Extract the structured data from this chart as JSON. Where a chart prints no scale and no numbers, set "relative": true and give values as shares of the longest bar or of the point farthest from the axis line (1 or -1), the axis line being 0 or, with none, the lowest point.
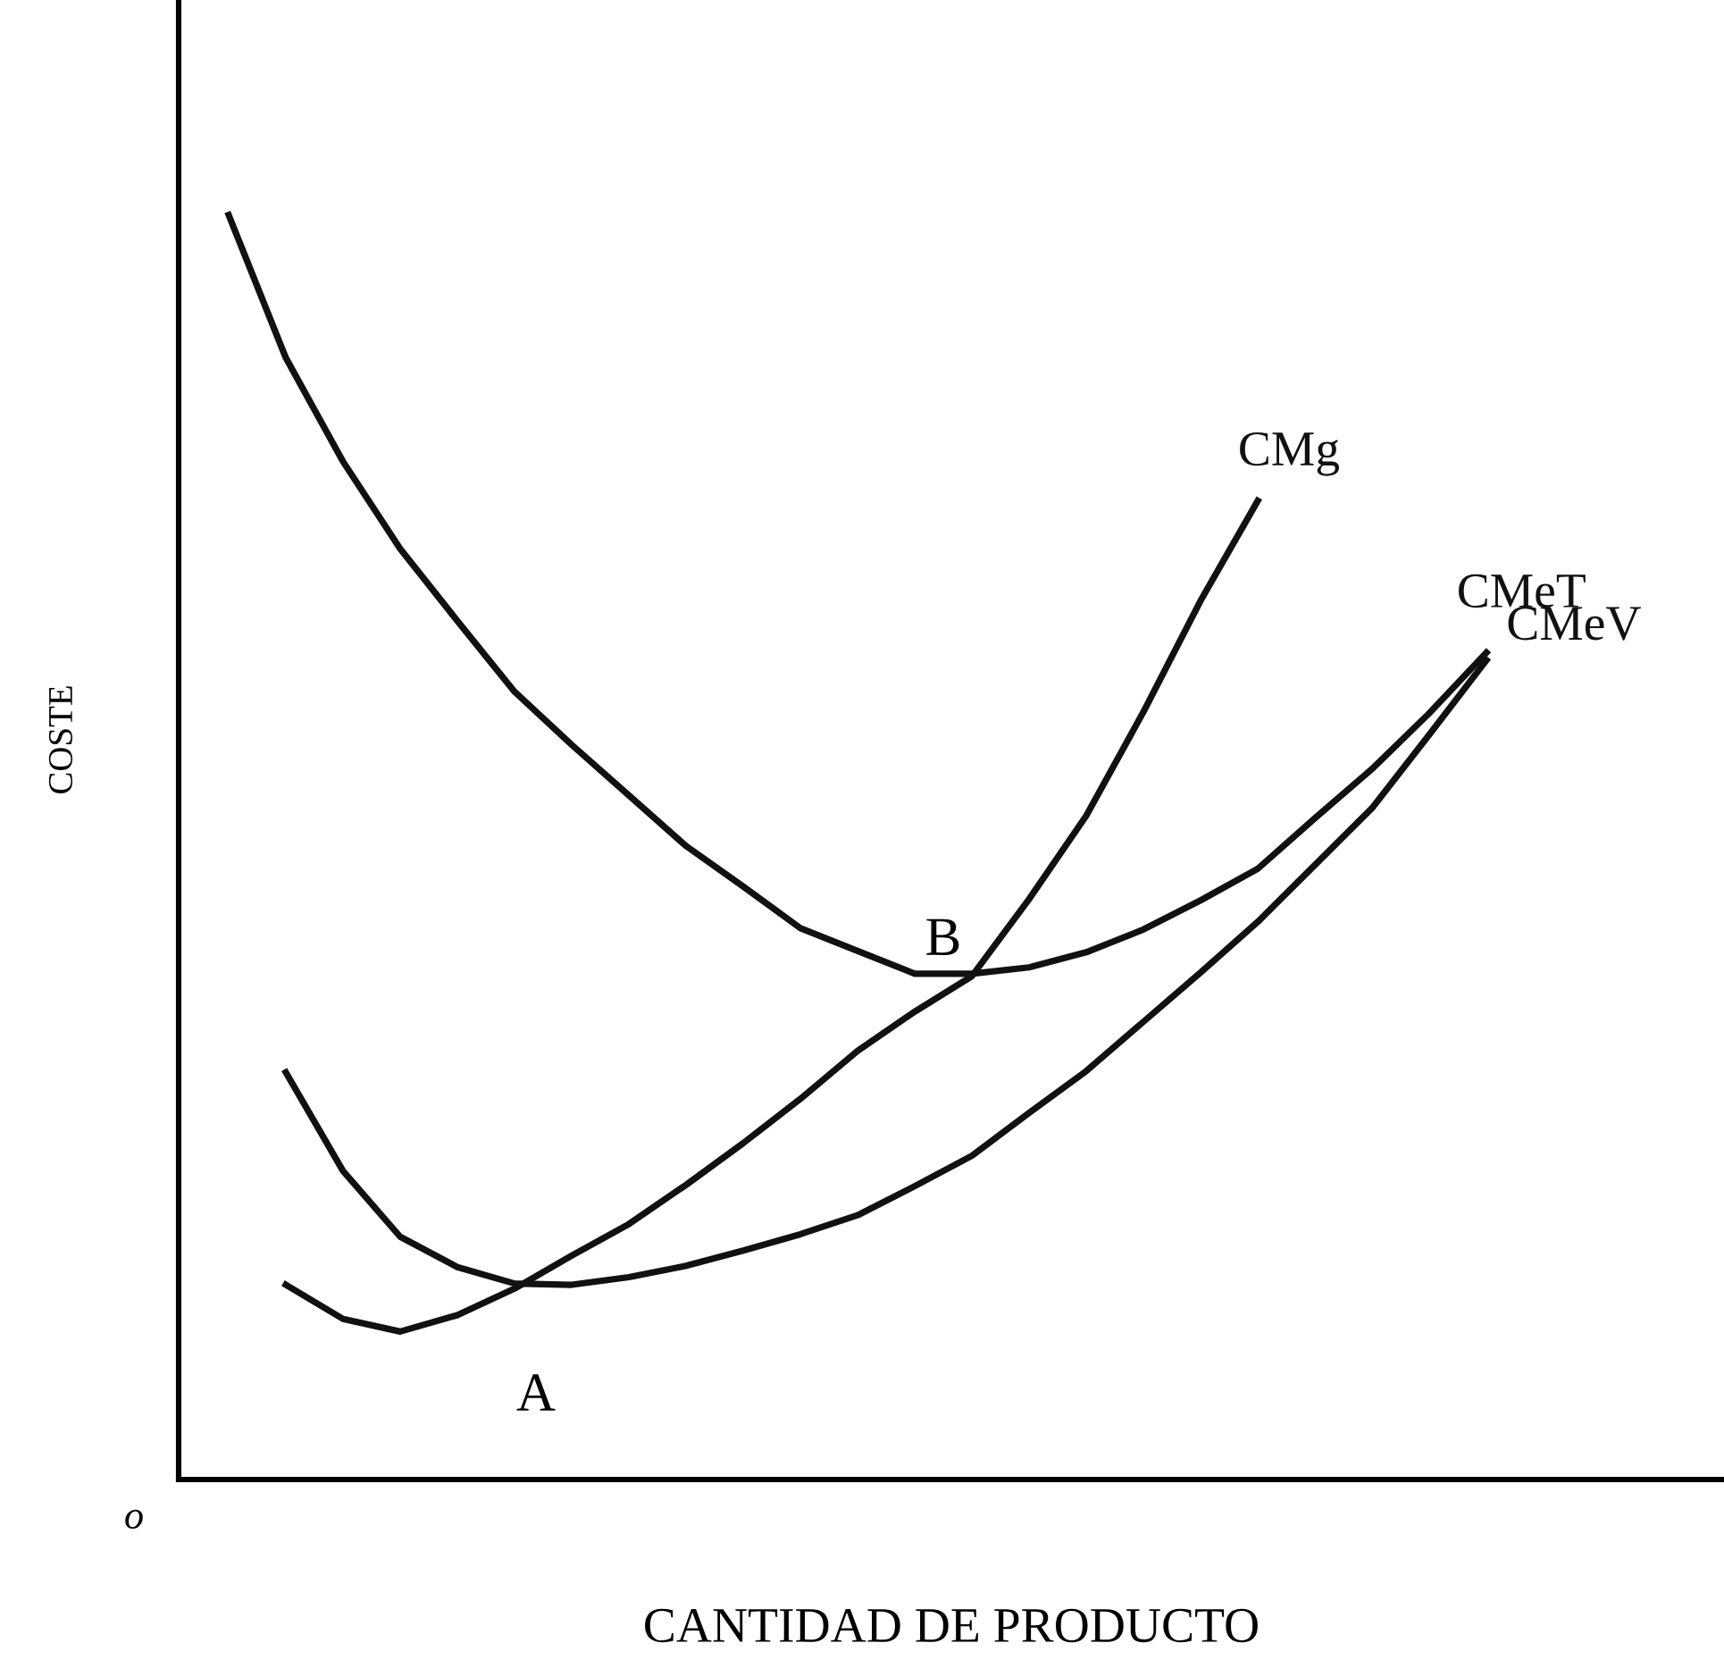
{
  "chart_data": {
    "type": "line",
    "relative": true,
    "xlabel": "CANTIDAD DE PRODUCTO",
    "ylabel": "COSTE",
    "marker": "none",
    "line_style": "solid",
    "categories": [
      null,
      null,
      null,
      null,
      null,
      null,
      null,
      null,
      null,
      null,
      null,
      null,
      null,
      null,
      null,
      null,
      null,
      null,
      null,
      null,
      null,
      null,
      null,
      null
    ],
    "series": [
      {
        "name": "CMg",
        "color": "#111111",
        "values": [
          null,
          0.154,
          0.127,
          0.117,
          0.13,
          0.151,
          0.177,
          0.202,
          0.233,
          0.266,
          0.301,
          0.339,
          0.37,
          0.398,
          0.459,
          0.525,
          0.607,
          0.695,
          0.774,
          null,
          null,
          null,
          null,
          null
        ]
      },
      {
        "name": "CMeT",
        "color": "#111111",
        "values": [
          1.0,
          0.887,
          0.805,
          0.736,
          0.679,
          0.623,
          0.581,
          0.541,
          0.501,
          0.469,
          0.436,
          0.418,
          0.4,
          0.4,
          0.405,
          0.417,
          0.435,
          0.458,
          0.483,
          0.523,
          0.562,
          0.606,
          0.654,
          null
        ]
      },
      {
        "name": "CMeV",
        "color": "#111111",
        "values": [
          null,
          0.322,
          0.244,
          0.192,
          0.168,
          0.155,
          0.154,
          0.16,
          0.169,
          0.181,
          0.194,
          0.209,
          0.232,
          0.256,
          0.29,
          0.323,
          0.362,
          0.401,
          0.441,
          0.486,
          0.531,
          0.589,
          0.648,
          null
        ]
      }
    ],
    "annotations": [
      "o",
      "A",
      "B"
    ]
  }
}
